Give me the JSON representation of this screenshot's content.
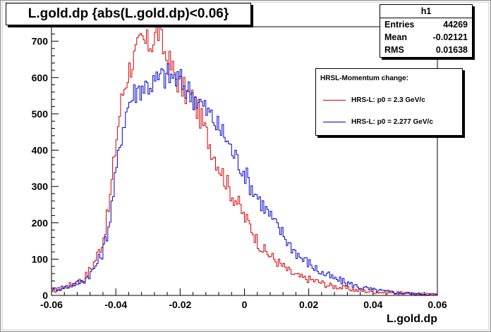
{
  "title": "L.gold.dp {abs(L.gold.dp)<0.06}",
  "stats": {
    "name": "h1",
    "rows": [
      {
        "label": "Entries",
        "value": "44269"
      },
      {
        "label": "Mean",
        "value": "-0.02121"
      },
      {
        "label": "RMS",
        "value": "0.01638"
      }
    ]
  },
  "legend": {
    "header": "HRSL-Momentum change:",
    "entries": [
      {
        "label": "HRS-L: p0 =  2.3 GeV/c",
        "color": "#d40000"
      },
      {
        "label": "HRS-L: p0 =  2.277 GeV/c",
        "color": "#0000c8"
      }
    ]
  },
  "chart_data": {
    "type": "line",
    "xlabel": "L.gold.dp",
    "ylabel": "",
    "xlim": [
      -0.06,
      0.06
    ],
    "ylim": [
      0,
      740
    ],
    "xticks": [
      "-0.06",
      "-0.04",
      "-0.02",
      "0",
      "0.02",
      "0.04",
      "0.06"
    ],
    "yticks": [
      "0",
      "100",
      "200",
      "300",
      "400",
      "500",
      "600",
      "700"
    ],
    "grid": false,
    "series": [
      {
        "name": "HRS-L: p0 =  2.3 GeV/c",
        "color": "#d40000",
        "x": [
          -0.06,
          -0.055,
          -0.05,
          -0.047,
          -0.044,
          -0.042,
          -0.04,
          -0.038,
          -0.036,
          -0.034,
          -0.032,
          -0.03,
          -0.028,
          -0.027,
          -0.026,
          -0.024,
          -0.022,
          -0.02,
          -0.018,
          -0.016,
          -0.014,
          -0.012,
          -0.01,
          -0.008,
          -0.006,
          -0.004,
          -0.002,
          0.0,
          0.002,
          0.004,
          0.006,
          0.008,
          0.01,
          0.012,
          0.014,
          0.016,
          0.018,
          0.02,
          0.022,
          0.024,
          0.026,
          0.028,
          0.03,
          0.035,
          0.04,
          0.045,
          0.05,
          0.055,
          0.06
        ],
        "y": [
          10,
          25,
          45,
          85,
          150,
          250,
          420,
          550,
          620,
          660,
          700,
          690,
          705,
          735,
          700,
          650,
          615,
          580,
          555,
          540,
          500,
          450,
          400,
          360,
          320,
          280,
          255,
          215,
          190,
          150,
          125,
          110,
          95,
          80,
          65,
          55,
          48,
          45,
          40,
          35,
          28,
          25,
          22,
          14,
          10,
          8,
          6,
          4,
          3
        ]
      },
      {
        "name": "HRS-L: p0 =  2.277 GeV/c",
        "color": "#0000c8",
        "x": [
          -0.06,
          -0.055,
          -0.05,
          -0.047,
          -0.044,
          -0.042,
          -0.04,
          -0.038,
          -0.036,
          -0.034,
          -0.032,
          -0.03,
          -0.028,
          -0.026,
          -0.024,
          -0.022,
          -0.02,
          -0.018,
          -0.016,
          -0.014,
          -0.012,
          -0.01,
          -0.008,
          -0.006,
          -0.004,
          -0.002,
          0.0,
          0.002,
          0.004,
          0.006,
          0.008,
          0.01,
          0.012,
          0.014,
          0.016,
          0.018,
          0.02,
          0.022,
          0.024,
          0.026,
          0.028,
          0.03,
          0.035,
          0.04,
          0.045,
          0.05,
          0.055,
          0.06
        ],
        "y": [
          15,
          25,
          40,
          70,
          120,
          200,
          330,
          460,
          530,
          560,
          575,
          580,
          585,
          600,
          605,
          600,
          590,
          570,
          550,
          535,
          510,
          490,
          460,
          440,
          400,
          370,
          340,
          300,
          275,
          245,
          220,
          190,
          170,
          140,
          120,
          100,
          90,
          75,
          62,
          55,
          45,
          40,
          25,
          15,
          10,
          6,
          4,
          3
        ]
      }
    ]
  }
}
